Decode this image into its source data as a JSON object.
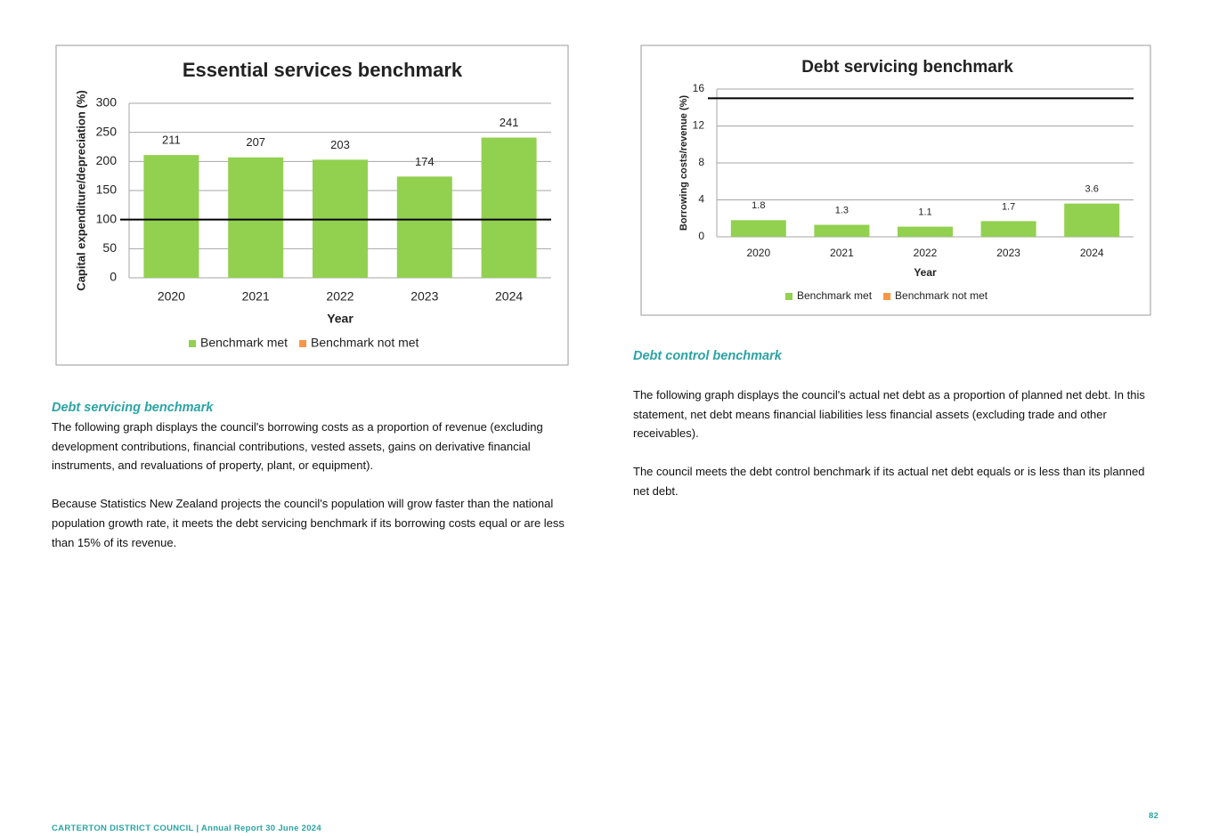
{
  "chart_data": [
    {
      "type": "bar",
      "title": "Essential services benchmark",
      "x_label": "Year",
      "y_label": "Capital expenditure/depreciation (%)",
      "categories": [
        "2020",
        "2021",
        "2022",
        "2023",
        "2024"
      ],
      "series": [
        {
          "name": "Benchmark met",
          "color": "#92d050",
          "values": [
            211,
            207,
            203,
            174,
            241
          ]
        },
        {
          "name": "Benchmark not met",
          "color": "#f79646",
          "values": [
            null,
            null,
            null,
            null,
            null
          ]
        }
      ],
      "ylim": [
        0,
        300
      ],
      "yticks": [
        0,
        50,
        100,
        150,
        200,
        250,
        300
      ],
      "grid": true,
      "benchmark": 100
    },
    {
      "type": "bar",
      "title": "Debt servicing benchmark",
      "x_label": "Year",
      "y_label": "Borrowing costs/revenue (%)",
      "categories": [
        "2020",
        "2021",
        "2022",
        "2023",
        "2024"
      ],
      "series": [
        {
          "name": "Benchmark met",
          "color": "#92d050",
          "values": [
            1.8,
            1.3,
            1.1,
            1.7,
            3.6
          ]
        },
        {
          "name": "Benchmark not met",
          "color": "#f79646",
          "values": [
            null,
            null,
            null,
            null,
            null
          ]
        }
      ],
      "ylim": [
        0,
        16
      ],
      "yticks": [
        0,
        4,
        8,
        12,
        16
      ],
      "grid": true,
      "benchmark": 15
    }
  ],
  "sections": [
    {
      "heading": "Debt servicing benchmark",
      "paragraphs": [
        "The following graph displays the council's borrowing costs as a proportion of revenue (excluding development contributions, financial contributions, vested assets, gains on derivative financial instruments, and revaluations of property, plant, or equipment).",
        "Because Statistics New Zealand projects the council's population will grow faster than the national population growth rate, it meets the debt servicing benchmark if its borrowing costs equal or are less than 15% of its revenue."
      ]
    },
    {
      "heading": "Debt control benchmark",
      "paragraphs": [
        "The following graph displays the council's actual net debt as a proportion of planned net debt. In this statement, net debt means financial liabilities less financial assets (excluding trade and other receivables).",
        "The council meets the debt control benchmark if its actual net debt equals or is less than its planned net debt."
      ]
    }
  ],
  "footer": {
    "text": "CARTERTON DISTRICT COUNCIL | Annual Report 30 June 2024",
    "page_number": 82
  }
}
